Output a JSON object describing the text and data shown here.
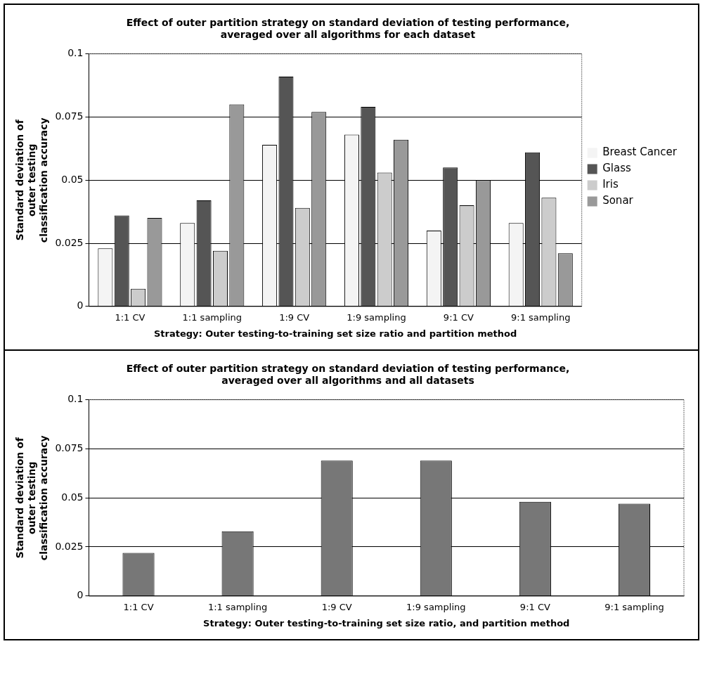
{
  "chart_data": [
    {
      "type": "bar",
      "title": "Effect of outer partition strategy on standard deviation of testing performance, averaged over all algorithms for each dataset",
      "xlabel": "Strategy: Outer testing-to-training set size ratio and partition method",
      "ylabel": "Standard deviation of outer testing classification accuracy",
      "categories": [
        "1:1 CV",
        "1:1 sampling",
        "1:9 CV",
        "1:9 sampling",
        "9:1 CV",
        "9:1 sampling"
      ],
      "series": [
        {
          "name": "Breast Cancer",
          "color": "#f4f4f4",
          "values": [
            0.023,
            0.033,
            0.064,
            0.068,
            0.03,
            0.033
          ]
        },
        {
          "name": "Glass",
          "color": "#555555",
          "values": [
            0.036,
            0.042,
            0.091,
            0.079,
            0.055,
            0.061
          ]
        },
        {
          "name": "Iris",
          "color": "#cccccc",
          "values": [
            0.007,
            0.022,
            0.039,
            0.053,
            0.04,
            0.043
          ]
        },
        {
          "name": "Sonar",
          "color": "#999999",
          "values": [
            0.035,
            0.08,
            0.077,
            0.066,
            0.05,
            0.021
          ]
        }
      ],
      "ylim": [
        0,
        0.1
      ],
      "yticks": [
        0,
        0.025,
        0.05,
        0.075,
        0.1
      ],
      "grid": "y",
      "legend": "right"
    },
    {
      "type": "bar",
      "title": "Effect of outer partition strategy on standard deviation of testing performance, averaged over all algorithms and all datasets",
      "xlabel": "Strategy: Outer testing-to-training set size ratio, and partition method",
      "ylabel": "Standard deviation of outer testing classification accuracy",
      "categories": [
        "1:1 CV",
        "1:1 sampling",
        "1:9 CV",
        "1:9 sampling",
        "9:1 CV",
        "9:1 sampling"
      ],
      "values": [
        0.022,
        0.033,
        0.069,
        0.069,
        0.048,
        0.047
      ],
      "color": "#777777",
      "ylim": [
        0,
        0.1
      ],
      "yticks": [
        0,
        0.025,
        0.05,
        0.075,
        0.1
      ],
      "grid": "y",
      "legend": false
    }
  ]
}
